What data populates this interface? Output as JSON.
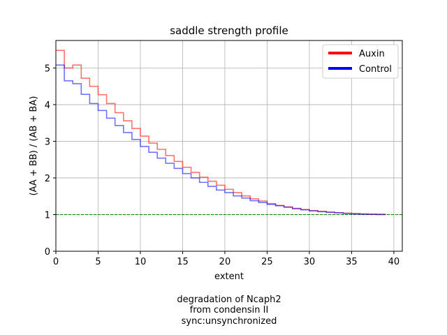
{
  "chart_data": {
    "type": "line",
    "step": "post",
    "title": "saddle strength profile",
    "xlabel": "extent",
    "ylabel": "(AA + BB) / (AB + BA)",
    "xlim": [
      0,
      41
    ],
    "ylim": [
      0,
      5.75
    ],
    "xticks": [
      0,
      5,
      10,
      15,
      20,
      25,
      30,
      35,
      40
    ],
    "yticks": [
      0,
      1,
      2,
      3,
      4,
      5
    ],
    "grid": true,
    "legend": "top-right",
    "caption": [
      "degradation of Ncaph2",
      "from condensin II",
      "sync:unsynchronized"
    ],
    "reference_line": {
      "y": 1,
      "color": "#008000",
      "style": "dashed"
    },
    "x": [
      0,
      1,
      2,
      3,
      4,
      5,
      6,
      7,
      8,
      9,
      10,
      11,
      12,
      13,
      14,
      15,
      16,
      17,
      18,
      19,
      20,
      21,
      22,
      23,
      24,
      25,
      26,
      27,
      28,
      29,
      30,
      31,
      32,
      33,
      34,
      35,
      36,
      37,
      38,
      39
    ],
    "series": [
      {
        "name": "Auxin",
        "color": "#ff0000",
        "values": [
          5.48,
          5.0,
          5.08,
          4.72,
          4.5,
          4.27,
          4.03,
          3.78,
          3.56,
          3.35,
          3.14,
          2.95,
          2.78,
          2.61,
          2.45,
          2.29,
          2.15,
          2.02,
          1.91,
          1.8,
          1.69,
          1.6,
          1.51,
          1.43,
          1.37,
          1.3,
          1.25,
          1.21,
          1.17,
          1.14,
          1.11,
          1.09,
          1.07,
          1.05,
          1.04,
          1.03,
          1.02,
          1.01,
          1.01,
          1.0
        ]
      },
      {
        "name": "Control",
        "color": "#0000ff",
        "values": [
          5.08,
          4.65,
          4.57,
          4.28,
          4.03,
          3.84,
          3.63,
          3.43,
          3.24,
          3.05,
          2.86,
          2.7,
          2.54,
          2.4,
          2.26,
          2.12,
          2.0,
          1.88,
          1.77,
          1.67,
          1.6,
          1.51,
          1.45,
          1.38,
          1.33,
          1.28,
          1.24,
          1.2,
          1.16,
          1.13,
          1.1,
          1.08,
          1.06,
          1.05,
          1.03,
          1.02,
          1.01,
          1.01,
          1.0,
          1.0
        ]
      }
    ]
  }
}
